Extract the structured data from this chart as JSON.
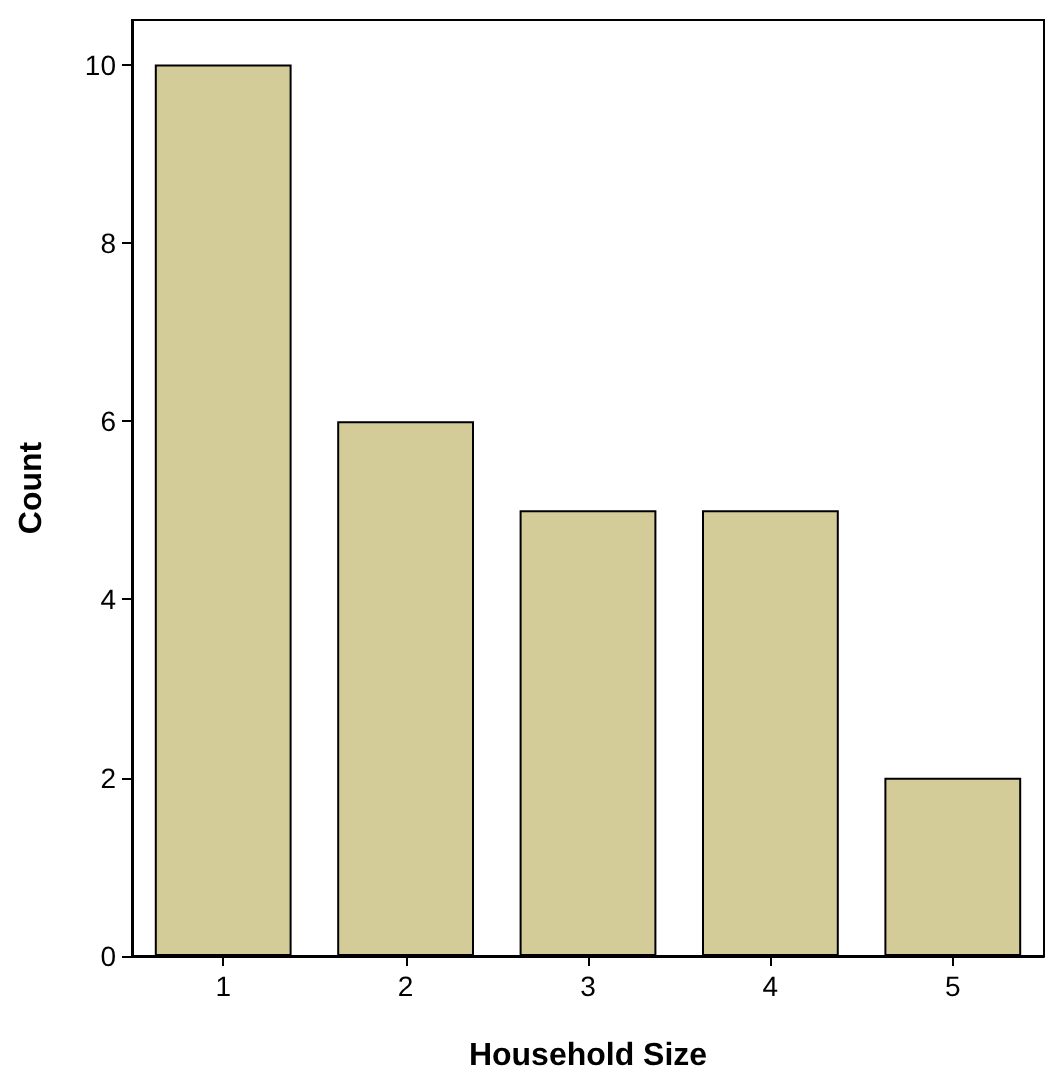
{
  "chart_data": {
    "type": "bar",
    "xlabel": "Household Size",
    "ylabel": "Count",
    "categories": [
      "1",
      "2",
      "3",
      "4",
      "5"
    ],
    "values": [
      10,
      6,
      5,
      5,
      2
    ],
    "color": "#d3cc98",
    "ylim": [
      0,
      10.5
    ],
    "yticks": [
      0,
      2,
      4,
      6,
      8,
      10
    ],
    "grid": false
  }
}
